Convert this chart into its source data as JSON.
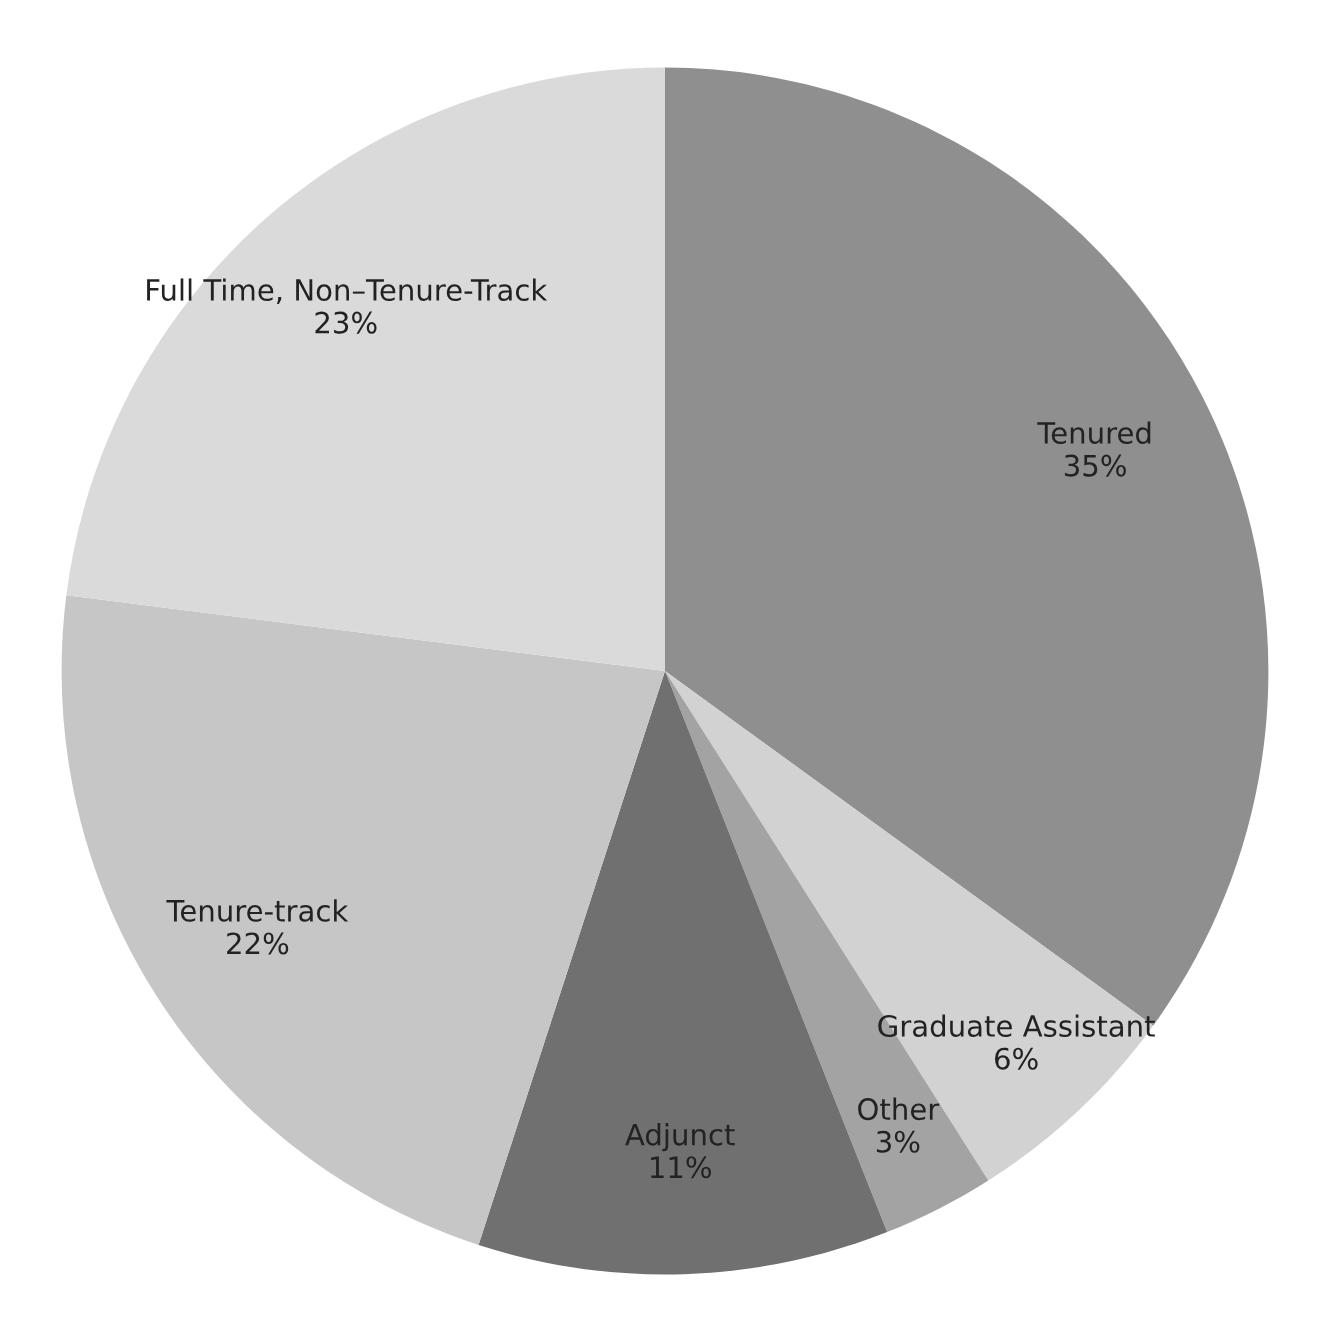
{
  "chart_data": {
    "type": "pie",
    "categories": [
      "Tenured",
      "Graduate Assistant",
      "Other",
      "Adjunct",
      "Tenure-track",
      "Full Time, Non–Tenure-Track"
    ],
    "values": [
      35,
      6,
      3,
      11,
      22,
      23
    ],
    "value_labels": [
      "35%",
      "6%",
      "3%",
      "11%",
      "22%",
      "23%"
    ],
    "colors": [
      "#8f8f8f",
      "#d2d2d2",
      "#a3a3a3",
      "#707070",
      "#c6c6c6",
      "#dadada"
    ],
    "legend": false
  }
}
